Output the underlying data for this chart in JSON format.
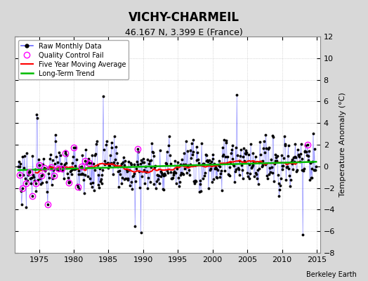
{
  "title": "VICHY-CHARMEIL",
  "subtitle": "46.167 N, 3.399 E (France)",
  "ylabel": "Temperature Anomaly (°C)",
  "attribution": "Berkeley Earth",
  "ylim": [
    -8,
    12
  ],
  "yticks": [
    -8,
    -6,
    -4,
    -2,
    0,
    2,
    4,
    6,
    8,
    10,
    12
  ],
  "xlim": [
    1971.5,
    2015.5
  ],
  "xticks": [
    1975,
    1980,
    1985,
    1990,
    1995,
    2000,
    2005,
    2010,
    2015
  ],
  "raw_color": "#6666ff",
  "raw_alpha": 0.7,
  "dot_color": "#000000",
  "qc_color": "#ff00ff",
  "moving_avg_color": "#ff0000",
  "trend_color": "#00bb00",
  "plot_bg": "#ffffff",
  "fig_bg": "#d8d8d8",
  "grid_color": "#aaaaaa",
  "trend_slope": 0.018,
  "trend_intercept": 0.45,
  "seed": 77
}
